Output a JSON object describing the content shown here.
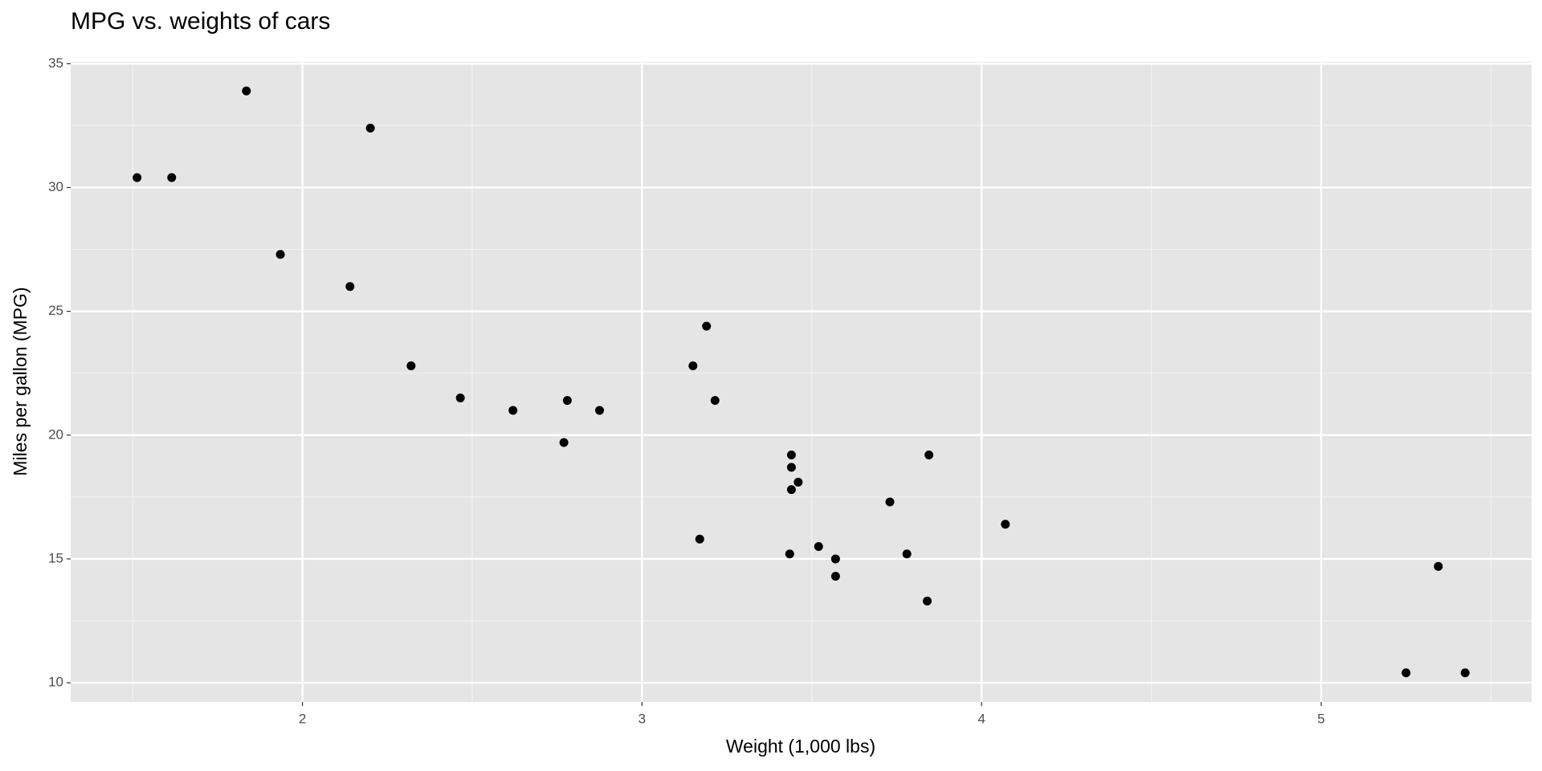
{
  "chart_data": {
    "type": "scatter",
    "title": "MPG vs. weights of cars",
    "x_label": "Weight (1,000 lbs)",
    "y_label": "Miles per gallon (MPG)",
    "x": [
      2.62,
      2.875,
      2.32,
      3.215,
      3.44,
      3.46,
      3.57,
      3.19,
      3.15,
      3.44,
      3.44,
      4.07,
      3.73,
      3.78,
      5.25,
      5.424,
      5.345,
      2.2,
      1.615,
      1.835,
      2.465,
      3.52,
      3.435,
      3.84,
      3.845,
      1.935,
      2.14,
      1.513,
      3.17,
      2.77,
      3.57,
      2.78
    ],
    "values": [
      21.0,
      21.0,
      22.8,
      21.4,
      18.7,
      18.1,
      14.3,
      24.4,
      22.8,
      19.2,
      17.8,
      16.4,
      17.3,
      15.2,
      10.4,
      10.4,
      14.7,
      32.4,
      30.4,
      33.9,
      21.5,
      15.5,
      15.2,
      13.3,
      19.2,
      27.3,
      26.0,
      30.4,
      15.8,
      19.7,
      15.0,
      21.4
    ],
    "color": "#000000",
    "xlim": [
      1.3175,
      5.6196
    ],
    "ylim": [
      9.225,
      35.075
    ],
    "xticks": [
      2,
      3,
      4,
      5
    ],
    "yticks": [
      10,
      15,
      20,
      25,
      30,
      35
    ],
    "xminorticks": [
      1.5,
      2.5,
      3.5,
      4.5,
      5.5
    ],
    "yminorticks": [
      12.5,
      17.5,
      22.5,
      27.5,
      32.5
    ],
    "grid": true
  }
}
